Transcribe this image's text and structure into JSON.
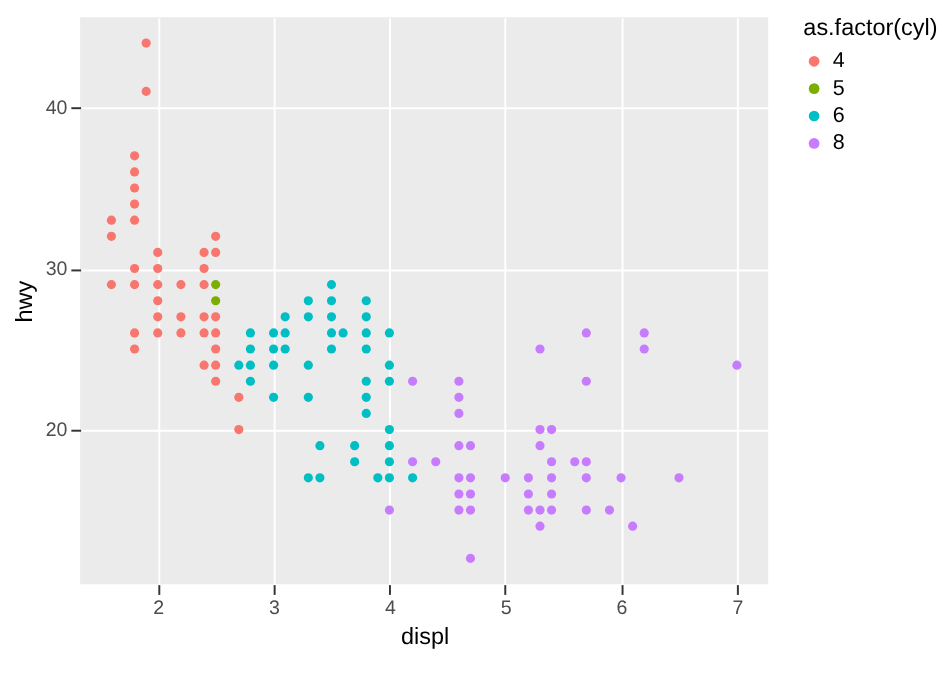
{
  "chart_data": {
    "type": "scatter",
    "xlabel": "displ",
    "ylabel": "hwy",
    "legend_title": "as.factor(cyl)",
    "legend": "right",
    "grid": true,
    "marker": "circle",
    "xlim": [
      1.33,
      7.27
    ],
    "xticks": [
      2,
      3,
      4,
      5,
      6,
      7
    ],
    "ylim": [
      10.4,
      45.6
    ],
    "yticks": [
      20,
      30,
      40
    ],
    "series": [
      {
        "name": "4",
        "color": "#F8766D",
        "x": [
          1.9,
          1.9,
          1.6,
          1.6,
          1.6,
          1.8,
          1.8,
          1.8,
          1.8,
          1.8,
          1.8,
          1.8,
          1.8,
          1.8,
          2.0,
          2.0,
          2.0,
          2.0,
          2.0,
          2.0,
          2.2,
          2.2,
          2.2,
          2.4,
          2.4,
          2.4,
          2.4,
          2.4,
          2.4,
          2.5,
          2.5,
          2.5,
          2.5,
          2.5,
          2.5,
          2.5,
          2.7,
          2.7
        ],
        "values": [
          44,
          41,
          33,
          32,
          29,
          37,
          36,
          35,
          34,
          33,
          30,
          29,
          26,
          25,
          31,
          30,
          29,
          28,
          27,
          26,
          29,
          27,
          26,
          31,
          30,
          29,
          27,
          26,
          24,
          32,
          31,
          27,
          26,
          25,
          24,
          23,
          22,
          20
        ]
      },
      {
        "name": "5",
        "color": "#7CAE00",
        "x": [
          2.5,
          2.5
        ],
        "values": [
          29,
          28
        ]
      },
      {
        "name": "6",
        "color": "#00BFC4",
        "x": [
          2.7,
          2.8,
          2.8,
          2.8,
          2.8,
          3.0,
          3.0,
          3.0,
          3.0,
          3.1,
          3.1,
          3.1,
          3.3,
          3.3,
          3.3,
          3.3,
          3.3,
          3.4,
          3.4,
          3.5,
          3.5,
          3.5,
          3.5,
          3.5,
          3.6,
          3.7,
          3.7,
          3.8,
          3.8,
          3.8,
          3.8,
          3.8,
          3.8,
          3.8,
          3.9,
          4.0,
          4.0,
          4.0,
          4.0,
          4.0,
          4.0,
          4.0,
          4.2
        ],
        "values": [
          24,
          26,
          25,
          24,
          23,
          26,
          25,
          24,
          22,
          27,
          26,
          25,
          28,
          27,
          24,
          22,
          17,
          19,
          17,
          29,
          28,
          27,
          26,
          25,
          26,
          19,
          18,
          28,
          27,
          26,
          25,
          23,
          22,
          21,
          17,
          26,
          24,
          23,
          20,
          19,
          18,
          17,
          17
        ]
      },
      {
        "name": "8",
        "color": "#C77CFF",
        "x": [
          4.0,
          4.2,
          4.2,
          4.4,
          4.6,
          4.6,
          4.6,
          4.6,
          4.6,
          4.6,
          4.6,
          4.7,
          4.7,
          4.7,
          4.7,
          4.7,
          5.0,
          5.2,
          5.2,
          5.2,
          5.3,
          5.3,
          5.3,
          5.3,
          5.3,
          5.4,
          5.4,
          5.4,
          5.4,
          5.4,
          5.6,
          5.7,
          5.7,
          5.7,
          5.7,
          5.7,
          5.9,
          6.0,
          6.1,
          6.2,
          6.2,
          6.5,
          7.0
        ],
        "values": [
          15,
          23,
          18,
          18,
          23,
          22,
          21,
          19,
          17,
          16,
          15,
          19,
          17,
          16,
          15,
          12,
          17,
          17,
          16,
          15,
          25,
          20,
          19,
          15,
          14,
          20,
          18,
          17,
          16,
          15,
          18,
          26,
          23,
          18,
          17,
          15,
          15,
          17,
          14,
          26,
          25,
          17,
          24
        ]
      }
    ]
  }
}
